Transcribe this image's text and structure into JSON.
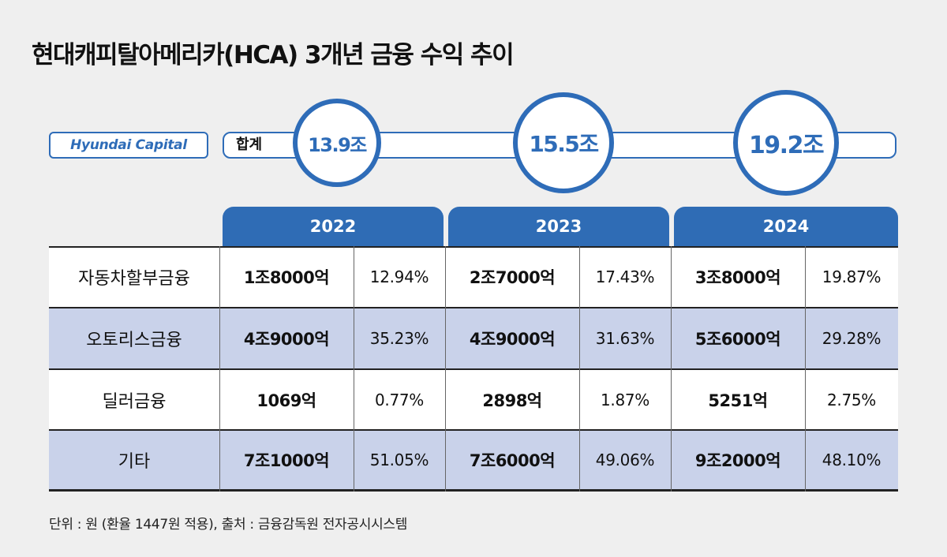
{
  "title": "현대캐피탈아메리카(HCA) 3개년 금융 수익 추이",
  "logo": "Hyundai Capital",
  "total_label": "합계",
  "colors": {
    "accent": "#2e6cb8",
    "band": "#c9d2ea",
    "background": "#efefef"
  },
  "chart_data": {
    "type": "table",
    "totals": [
      {
        "year": "2022",
        "value": "13.9조"
      },
      {
        "year": "2023",
        "value": "15.5조"
      },
      {
        "year": "2024",
        "value": "19.2조"
      }
    ],
    "years": [
      "2022",
      "2023",
      "2024"
    ],
    "rows": [
      {
        "category": "자동차할부금융",
        "cells": [
          [
            "1조8000억",
            "12.94%"
          ],
          [
            "2조7000억",
            "17.43%"
          ],
          [
            "3조8000억",
            "19.87%"
          ]
        ]
      },
      {
        "category": "오토리스금융",
        "cells": [
          [
            "4조9000억",
            "35.23%"
          ],
          [
            "4조9000억",
            "31.63%"
          ],
          [
            "5조6000억",
            "29.28%"
          ]
        ]
      },
      {
        "category": "딜러금융",
        "cells": [
          [
            "1069억",
            "0.77%"
          ],
          [
            "2898억",
            "1.87%"
          ],
          [
            "5251억",
            "2.75%"
          ]
        ]
      },
      {
        "category": "기타",
        "cells": [
          [
            "7조1000억",
            "51.05%"
          ],
          [
            "7조6000억",
            "49.06%"
          ],
          [
            "9조2000억",
            "48.10%"
          ]
        ]
      }
    ]
  },
  "footnote": "단위 : 원 (환율 1447원 적용), 출처 : 금융감독원 전자공시시스템"
}
